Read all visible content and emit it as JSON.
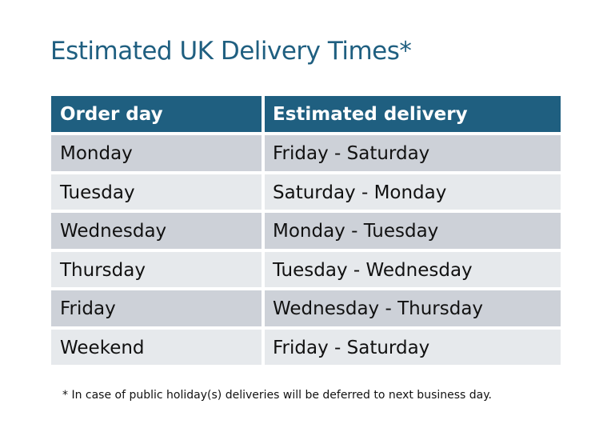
{
  "title": "Estimated UK Delivery Times*",
  "table": {
    "headers": [
      "Order day",
      "Estimated delivery"
    ],
    "rows": [
      [
        "Monday",
        "Friday - Saturday"
      ],
      [
        "Tuesday",
        "Saturday - Monday"
      ],
      [
        "Wednesday",
        "Monday - Tuesday"
      ],
      [
        "Thursday",
        "Tuesday - Wednesday"
      ],
      [
        "Friday",
        "Wednesday - Thursday"
      ],
      [
        "Weekend",
        "Friday - Saturday"
      ]
    ]
  },
  "footnote": "* In case of public holiday(s) deliveries will be deferred to next business day.",
  "colors": {
    "header": "#1f5f80",
    "row_dark": "#cdd1d8",
    "row_light": "#e6e9ec"
  }
}
